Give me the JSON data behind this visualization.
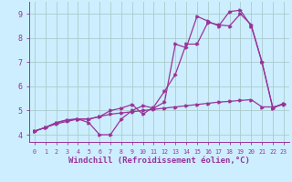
{
  "background_color": "#cceeff",
  "grid_color": "#aacccc",
  "line_color": "#993399",
  "xlabel": "Windchill (Refroidissement éolien,°C)",
  "xlabel_fontsize": 6.5,
  "ylabel_values": [
    4,
    5,
    6,
    7,
    8,
    9
  ],
  "xlim": [
    -0.5,
    23.5
  ],
  "ylim": [
    3.7,
    9.5
  ],
  "xticks": [
    0,
    1,
    2,
    3,
    4,
    5,
    6,
    7,
    8,
    9,
    10,
    11,
    12,
    13,
    14,
    15,
    16,
    17,
    18,
    19,
    20,
    21,
    22,
    23
  ],
  "line1_x": [
    0,
    1,
    2,
    3,
    4,
    5,
    6,
    7,
    8,
    9,
    10,
    11,
    12,
    13,
    14,
    15,
    16,
    17,
    18,
    19,
    20,
    21,
    22,
    23
  ],
  "line1_y": [
    4.15,
    4.3,
    4.45,
    4.55,
    4.65,
    4.65,
    4.75,
    4.85,
    4.9,
    4.95,
    5.0,
    5.05,
    5.1,
    5.15,
    5.2,
    5.25,
    5.3,
    5.35,
    5.38,
    5.42,
    5.45,
    5.15,
    5.15,
    5.25
  ],
  "line2_x": [
    0,
    1,
    2,
    3,
    4,
    5,
    6,
    7,
    8,
    9,
    10,
    11,
    12,
    13,
    14,
    15,
    16,
    17,
    18,
    19,
    20,
    21,
    22,
    23
  ],
  "line2_y": [
    4.15,
    4.3,
    4.5,
    4.6,
    4.65,
    4.5,
    4.0,
    4.0,
    4.65,
    5.0,
    5.2,
    5.1,
    5.35,
    7.75,
    7.6,
    8.9,
    8.7,
    8.5,
    9.1,
    9.15,
    8.5,
    7.0,
    5.1,
    5.3
  ],
  "line3_x": [
    0,
    1,
    2,
    3,
    4,
    5,
    6,
    7,
    8,
    9,
    10,
    11,
    12,
    13,
    14,
    15,
    16,
    17,
    18,
    19,
    20,
    21,
    22,
    23
  ],
  "line3_y": [
    4.15,
    4.3,
    4.5,
    4.62,
    4.65,
    4.65,
    4.75,
    5.0,
    5.1,
    5.25,
    4.85,
    5.15,
    5.8,
    6.5,
    7.75,
    7.75,
    8.65,
    8.55,
    8.5,
    9.0,
    8.55,
    7.0,
    5.1,
    5.3
  ]
}
